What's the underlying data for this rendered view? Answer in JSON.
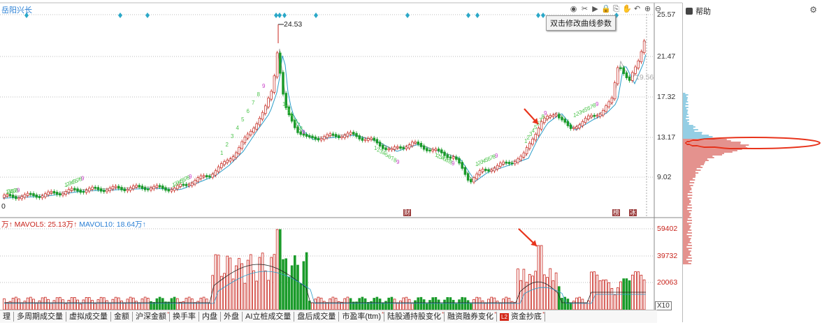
{
  "header": {
    "stock_title": "岳阳兴长",
    "tooltip": "双击修改曲线参数",
    "toolbar_icons": [
      {
        "name": "eye-icon",
        "glyph": "◉"
      },
      {
        "name": "scissors-icon",
        "glyph": "✂"
      },
      {
        "name": "play-icon",
        "glyph": "▶"
      },
      {
        "name": "lock-icon",
        "glyph": "🔒"
      },
      {
        "name": "export-icon",
        "glyph": "⎘"
      },
      {
        "name": "hand-icon",
        "glyph": "✋"
      },
      {
        "name": "undo-icon",
        "glyph": "↶"
      },
      {
        "name": "zoom-in-icon",
        "glyph": "⊕"
      },
      {
        "name": "zoom-out-icon",
        "glyph": "⊖"
      }
    ]
  },
  "price_chart": {
    "y_labels": [
      "25.57",
      "21.47",
      "17.32",
      "13.17",
      "9.02"
    ],
    "peak_label": "24.53",
    "current_label": "19.56",
    "left_edge_label": "0",
    "event_markers": [
      "财",
      "榜",
      "冰"
    ]
  },
  "volume_chart": {
    "legend_prefix": "万↑",
    "mavol5": "MAVOL5: 25.13万↑",
    "mavol10": "MAVOL10: 18.64万↑",
    "y_labels": [
      "59402",
      "39732",
      "20063"
    ],
    "unit_badge": "X10"
  },
  "tabs": [
    {
      "label": "理",
      "superscript": ""
    },
    {
      "label": "多周期成交量",
      "superscript": ""
    },
    {
      "label": "虚拟成交量",
      "superscript": ""
    },
    {
      "label": "金额",
      "superscript": ""
    },
    {
      "label": "沪深金额",
      "superscript": "*"
    },
    {
      "label": "换手率",
      "superscript": ""
    },
    {
      "label": "内盘",
      "superscript": ""
    },
    {
      "label": "外盘",
      "superscript": ""
    },
    {
      "label": "AI立桩成交量",
      "superscript": ""
    },
    {
      "label": "盘后成交量",
      "superscript": ""
    },
    {
      "label": "市盈率(ttm)",
      "superscript": "*"
    },
    {
      "label": "陆股通持股变化",
      "superscript": "*"
    },
    {
      "label": "融资融券变化",
      "superscript": "*"
    },
    {
      "label": "资金抄底",
      "superscript": "*",
      "badge": "L2"
    }
  ],
  "right_panel": {
    "title": "帮助"
  },
  "colors": {
    "up": "#c8241c",
    "down": "#1a9b2a",
    "ma_blue": "#2a9cc8",
    "grid": "#bdbdbd",
    "signal_green": "#4fc54f",
    "signal_magenta": "#c83cc8",
    "diamond": "#2aa8c8",
    "arrow": "#e8341c"
  }
}
